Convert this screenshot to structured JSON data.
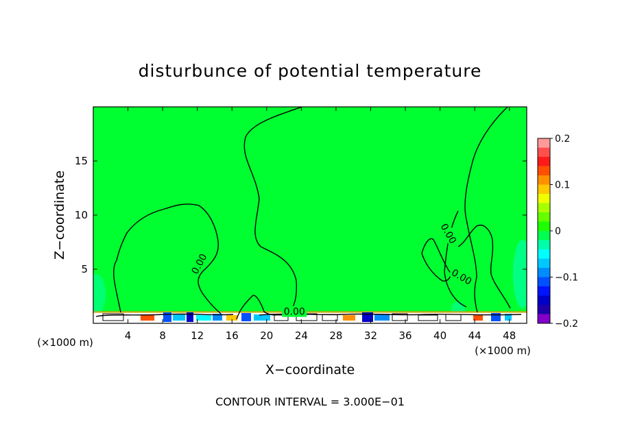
{
  "chart_data": {
    "type": "contour",
    "title": "disturbunce of potential temperature",
    "xlabel": "X−coordinate",
    "ylabel": "Z−coordinate",
    "x_unit_left": "(×1000 m)",
    "x_unit_right": "(×1000 m)",
    "xlim": [
      0,
      50
    ],
    "ylim": [
      0,
      20
    ],
    "x_ticks": [
      4,
      8,
      12,
      16,
      20,
      24,
      28,
      32,
      36,
      40,
      44,
      48
    ],
    "x_tick_labels": [
      "4",
      "8",
      "12",
      "16",
      "20",
      "24",
      "28",
      "32",
      "36",
      "40",
      "44",
      "48"
    ],
    "y_ticks": [
      5,
      10,
      15
    ],
    "y_tick_labels": [
      "5",
      "10",
      "15"
    ],
    "contour_labels": [
      {
        "text": "0.00",
        "x": 12.2,
        "y": 5.5,
        "angle": -62
      },
      {
        "text": "0.00",
        "x": 41.0,
        "y": 8.3,
        "angle": 60
      },
      {
        "text": "0.00",
        "x": 42.5,
        "y": 4.3,
        "angle": 30
      },
      {
        "text": "0.00",
        "x": 23.2,
        "y": 1.1,
        "angle": 0
      }
    ],
    "colorbar": {
      "ticks": [
        0.2,
        0.1,
        0,
        -0.1,
        -0.2
      ],
      "tick_labels": [
        "0.2",
        "0.1",
        "0",
        "−0.1",
        "−0.2"
      ],
      "colors": [
        "#ff9a9a",
        "#ff4f4f",
        "#ff1a1a",
        "#ff5000",
        "#ff9000",
        "#ffc800",
        "#f0ff00",
        "#a8ff00",
        "#64ff00",
        "#1eff00",
        "#00ff50",
        "#00ffa8",
        "#00ffff",
        "#00c8ff",
        "#008cff",
        "#0050ff",
        "#0014ff",
        "#0000c8",
        "#1e00aa",
        "#8200c8"
      ]
    },
    "field_color": "#00ff30",
    "footer": "CONTOUR INTERVAL = 3.000E−01"
  }
}
